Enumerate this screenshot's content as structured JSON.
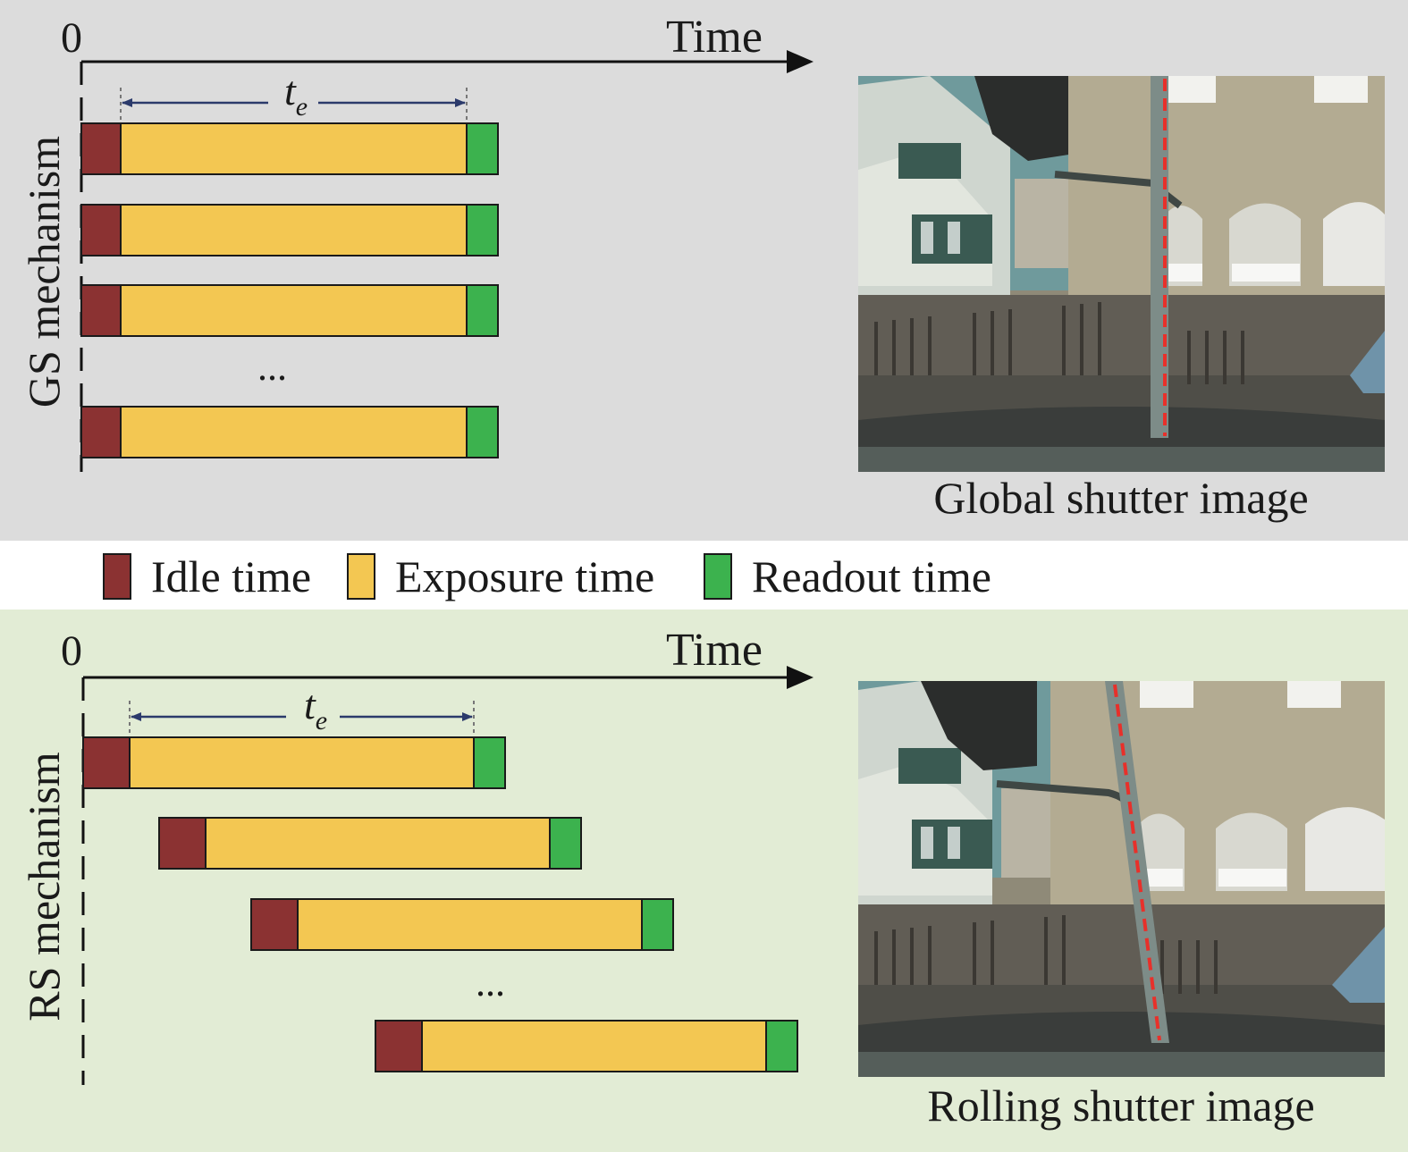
{
  "colors": {
    "idle": "#8b3232",
    "exposure": "#f3c752",
    "readout": "#3cb24e",
    "gs_background": "#dcdcdc",
    "rs_background": "#e2ecd5",
    "red_line": "#e8302a",
    "arrow": "#2b3a6b"
  },
  "gs": {
    "axis_origin": "0",
    "axis_label": "Time",
    "mechanism_label": "GS mechanism",
    "te_symbol": "t",
    "te_subscript": "e",
    "ellipsis": "...",
    "image_caption": "Global shutter image",
    "row_count_drawn": 4
  },
  "legend": {
    "idle_label": "Idle time",
    "exposure_label": "Exposure time",
    "readout_label": "Readout time"
  },
  "rs": {
    "axis_origin": "0",
    "axis_label": "Time",
    "mechanism_label": "RS mechanism",
    "te_symbol": "t",
    "te_subscript": "e",
    "ellipsis": "...",
    "image_caption": "Rolling shutter image",
    "row_count_drawn": 4
  }
}
